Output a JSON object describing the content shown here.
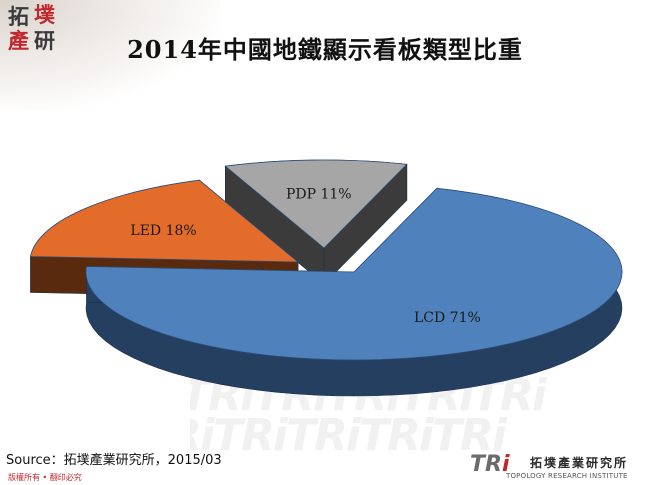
{
  "title": "2014年中國地鐵顯示看板類型比重",
  "logo": {
    "chars": [
      "拓",
      "墣",
      "產",
      "研"
    ]
  },
  "footer": {
    "source": "Source：拓墣產業研究所，2015/03",
    "rights": "版權所有 • 翻印必究"
  },
  "brand": {
    "tri": "TRi",
    "name_cn": "拓墣產業研究所",
    "name_en": "TOPOLOGY RESEARCH INSTITUTE"
  },
  "watermark_text": "TRiTRiTRiTRiTRi",
  "chart_data": {
    "type": "pie",
    "style": "3d-exploded",
    "title": "2014年中國地鐵顯示看板類型比重",
    "slices": [
      {
        "name": "LCD",
        "value": 71,
        "label": "LCD 71%",
        "color": "#4f81bd",
        "side_color": "#253f60"
      },
      {
        "name": "LED",
        "value": 18,
        "label": "LED 18%",
        "color": "#e46c2a",
        "side_color": "#5a2a0e"
      },
      {
        "name": "PDP",
        "value": 11,
        "label": "PDP 11%",
        "color": "#a6a6a6",
        "side_color": "#3b3b3b"
      }
    ],
    "legend": "none"
  }
}
